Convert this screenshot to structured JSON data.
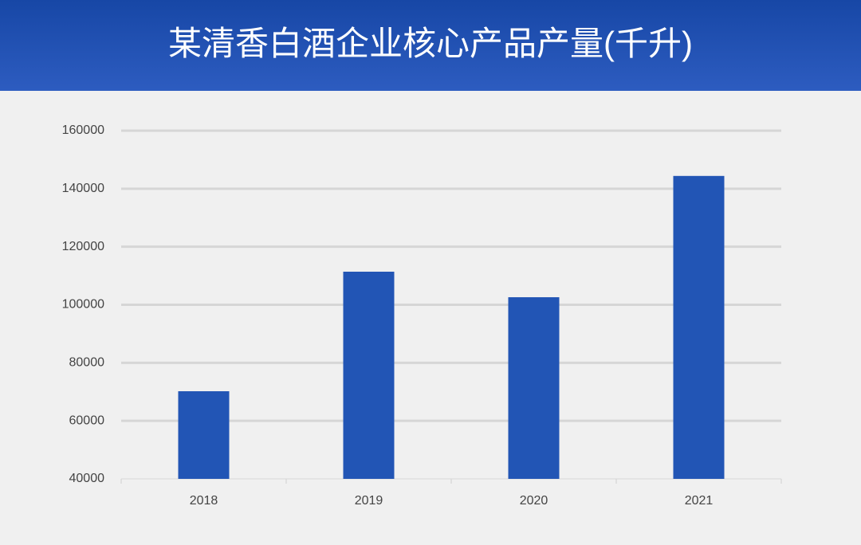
{
  "chart_data": {
    "type": "bar",
    "title": "某清香白酒企业核心产品产量(千升)",
    "categories": [
      "2018",
      "2019",
      "2020",
      "2021"
    ],
    "values": [
      70200,
      111400,
      102600,
      144400
    ],
    "color": "#2255b5",
    "ylim": [
      40000,
      160000
    ],
    "yticks": [
      40000,
      60000,
      80000,
      100000,
      120000,
      140000,
      160000
    ],
    "grid": true
  }
}
